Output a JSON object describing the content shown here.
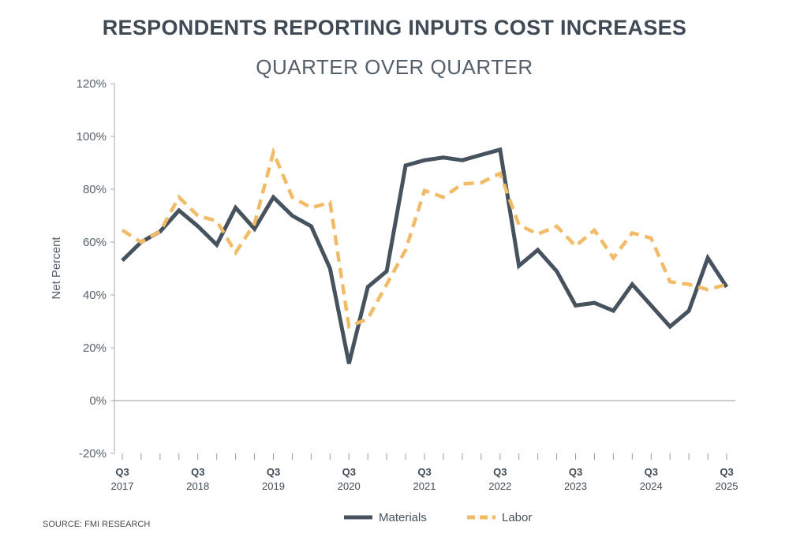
{
  "chart_data": {
    "type": "line",
    "title": "RESPONDENTS REPORTING INPUTS COST INCREASES",
    "subtitle": "QUARTER OVER QUARTER",
    "ylabel": "Net Percent",
    "xlabel": "",
    "ylim": [
      -20,
      120
    ],
    "yticks": [
      "-20%",
      "0%",
      "20%",
      "40%",
      "60%",
      "80%",
      "100%",
      "120%"
    ],
    "ytick_values": [
      -20,
      0,
      20,
      40,
      60,
      80,
      100,
      120
    ],
    "xtick_labels": [
      [
        "Q3",
        "2017"
      ],
      [
        "Q3",
        "2018"
      ],
      [
        "Q3",
        "2019"
      ],
      [
        "Q3",
        "2020"
      ],
      [
        "Q3",
        "2021"
      ],
      [
        "Q3",
        "2022"
      ],
      [
        "Q3",
        "2023"
      ],
      [
        "Q3",
        "2024"
      ],
      [
        "Q3",
        "2025"
      ]
    ],
    "x": [
      "Q3 2017",
      "Q4 2017",
      "Q1 2018",
      "Q2 2018",
      "Q3 2018",
      "Q4 2018",
      "Q1 2019",
      "Q2 2019",
      "Q3 2019",
      "Q4 2019",
      "Q1 2020",
      "Q2 2020",
      "Q3 2020",
      "Q4 2020",
      "Q1 2021",
      "Q2 2021",
      "Q3 2021",
      "Q4 2021",
      "Q1 2022",
      "Q2 2022",
      "Q3 2022",
      "Q4 2022",
      "Q1 2023",
      "Q2 2023",
      "Q3 2023",
      "Q4 2023",
      "Q1 2024",
      "Q2 2024",
      "Q3 2024",
      "Q4 2024",
      "Q1 2025",
      "Q2 2025",
      "Q3 2025"
    ],
    "series": [
      {
        "name": "Materials",
        "color": "#46535e",
        "style": "solid",
        "values": [
          53,
          60,
          64,
          72,
          66,
          59,
          73,
          65,
          77,
          70,
          66,
          50,
          14,
          43,
          49,
          89,
          91,
          92,
          91,
          93,
          95,
          51,
          57,
          49,
          36,
          37,
          34,
          44,
          36,
          28,
          34,
          54,
          43
        ]
      },
      {
        "name": "Labor",
        "color": "#f2bb67",
        "style": "dashed",
        "values": [
          64.5,
          60,
          64,
          77,
          70,
          68,
          56,
          67,
          94,
          77,
          73,
          75,
          28,
          31,
          44,
          57,
          79.5,
          77,
          82,
          82.5,
          86,
          66.5,
          63,
          66,
          58.5,
          64.5,
          54,
          63.5,
          61.5,
          45,
          44,
          42,
          44
        ]
      }
    ],
    "grid": false,
    "legend_position": "bottom"
  },
  "source": "SOURCE: FMI RESEARCH"
}
